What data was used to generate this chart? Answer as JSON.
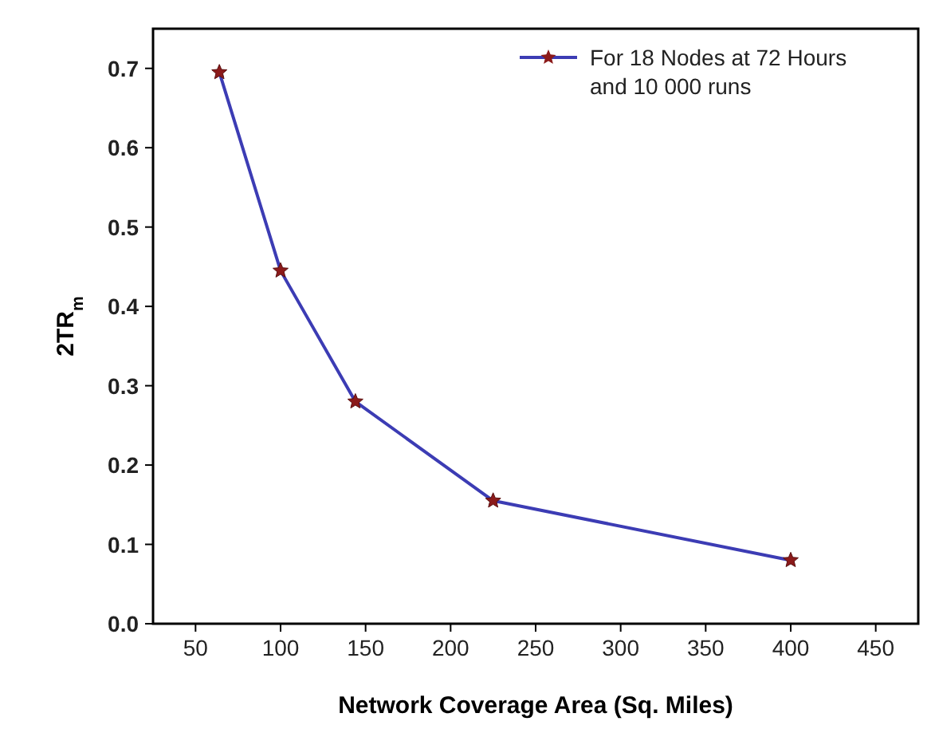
{
  "chart_data": {
    "type": "line",
    "xlabel": "Network Coverage Area (Sq. Miles)",
    "ylabel": "2TR$_{m}$",
    "x": [
      64,
      100,
      144,
      225,
      400
    ],
    "series": [
      {
        "name": "For 18 Nodes at 72 Hours and 10 000 runs",
        "color": "#3c3cb4",
        "values": [
          0.695,
          0.445,
          0.28,
          0.155,
          0.08
        ]
      }
    ],
    "xlim": [
      25,
      475
    ],
    "xticks": [
      50,
      100,
      150,
      200,
      250,
      300,
      350,
      400,
      450
    ],
    "ylim": [
      0,
      0.75
    ],
    "yticks": [
      {
        "value": 0,
        "label": "0.0"
      },
      {
        "value": 0.1,
        "label": "0.1"
      },
      {
        "value": 0.2,
        "label": "0.2"
      },
      {
        "value": 0.3,
        "label": "0.3"
      },
      {
        "value": 0.4,
        "label": "0.4"
      },
      {
        "value": 0.5,
        "label": "0.5"
      },
      {
        "value": 0.6,
        "label": "0.6"
      },
      {
        "value": 0.7,
        "label": "0.7"
      }
    ],
    "grid": false,
    "legend": "top right",
    "marker": "star",
    "line_style": "solid"
  }
}
